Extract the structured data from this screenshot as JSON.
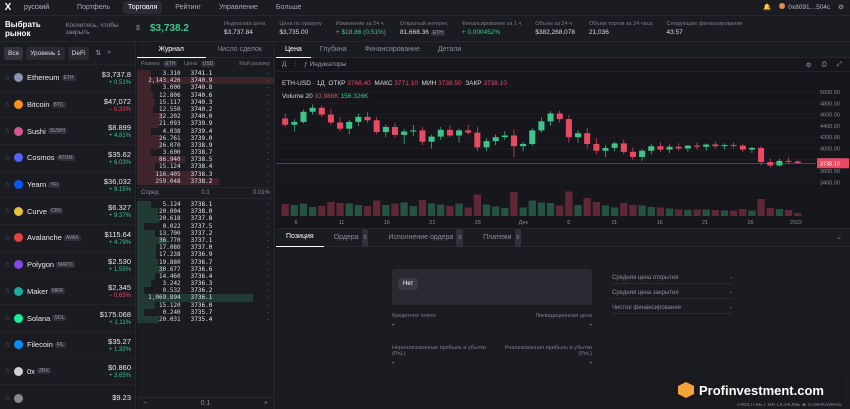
{
  "nav": {
    "logo": "X",
    "language": "русский",
    "items": [
      "Портфель",
      "Торговля",
      "Рейтинг",
      "Управление",
      "Больше"
    ],
    "active_index": 1,
    "account": "0x8091…504c"
  },
  "market": {
    "selector_label": "Выбрать рынок",
    "selector_hint": "Коснитесь, чтобы закрыть",
    "symbol": "$",
    "price": "$3,738.2",
    "stats": [
      {
        "label": "Индексная цена",
        "value": "$3,737.84",
        "green": false
      },
      {
        "label": "Цена по оракулу",
        "value": "$3,735.00",
        "green": false
      },
      {
        "label": "Изменение за 24 ч",
        "value": "+ $18.86 (0.51%)",
        "green": true
      },
      {
        "label": "Открытый интерес",
        "value": "81,668.36",
        "tag": "ETH",
        "green": false
      },
      {
        "label": "Финансирование за 1 ч",
        "value": "+ 0.000452%",
        "green": true
      },
      {
        "label": "Объем за 24 ч",
        "value": "$382,268,078",
        "green": false
      },
      {
        "label": "Объем торгов за 24 часа",
        "value": "21,036",
        "green": false
      },
      {
        "label": "Следующее финансирование",
        "value": "43:57",
        "green": false
      }
    ]
  },
  "filters": {
    "all": "Все",
    "level": "Уровень 1",
    "defi": "DeFi"
  },
  "markets": [
    {
      "name": "Ethereum",
      "ticker": "ETH",
      "price": "$3,737.8",
      "change": "+ 0.51%",
      "up": true,
      "color": "#8a92b2"
    },
    {
      "name": "Bitcoin",
      "ticker": "BTC",
      "price": "$47,072",
      "change": "− 0.33%",
      "up": false,
      "color": "#f7931a"
    },
    {
      "name": "Sushi",
      "ticker": "SUSHI",
      "price": "$8.899",
      "change": "+ 4.81%",
      "up": true,
      "color": "#d65892"
    },
    {
      "name": "Cosmos",
      "ticker": "ATOM",
      "price": "$35.62",
      "change": "+ 6.03%",
      "up": true,
      "color": "#5064fb"
    },
    {
      "name": "Yearn",
      "ticker": "YFI",
      "price": "$36,032",
      "change": "+ 9.15%",
      "up": true,
      "color": "#0657f9"
    },
    {
      "name": "Curve",
      "ticker": "CRV",
      "price": "$6.327",
      "change": "+ 9.37%",
      "up": true,
      "color": "#e8c13a"
    },
    {
      "name": "Avalanche",
      "ticker": "AVAX",
      "price": "$115.64",
      "change": "+ 4.79%",
      "up": true,
      "color": "#e84142"
    },
    {
      "name": "Polygon",
      "ticker": "MATIC",
      "price": "$2.530",
      "change": "+ 1.55%",
      "up": true,
      "color": "#8247e5"
    },
    {
      "name": "Maker",
      "ticker": "MKR",
      "price": "$2,345",
      "change": "− 0.65%",
      "up": false,
      "color": "#1aab9b"
    },
    {
      "name": "Solana",
      "ticker": "SOL",
      "price": "$175.068",
      "change": "+ 1.11%",
      "up": true,
      "color": "#14f195"
    },
    {
      "name": "Filecoin",
      "ticker": "FIL",
      "price": "$35.27",
      "change": "+ 1.32%",
      "up": true,
      "color": "#0090ff"
    },
    {
      "name": "0x",
      "ticker": "ZRX",
      "price": "$0.860",
      "change": "+ 3.65%",
      "up": true,
      "color": "#cfcfd4"
    },
    {
      "name": "",
      "ticker": "",
      "price": "$9.23",
      "change": "",
      "up": true,
      "color": "#888"
    }
  ],
  "book": {
    "tabs": [
      "Журнал",
      "Число сделок"
    ],
    "headers": [
      "Размер",
      "ETH",
      "Цена",
      "USD",
      "Мой размер"
    ],
    "asks": [
      {
        "size": "3.310",
        "price": "3741.1",
        "mine": "-",
        "depth": 0.1
      },
      {
        "size": "2,143.426",
        "price": "3740.9",
        "mine": "-",
        "depth": 1.0
      },
      {
        "size": "3.000",
        "price": "3740.8",
        "mine": "-",
        "depth": 0.1
      },
      {
        "size": "12.806",
        "price": "3740.6",
        "mine": "-",
        "depth": 0.12
      },
      {
        "size": "15.117",
        "price": "3740.3",
        "mine": "-",
        "depth": 0.13
      },
      {
        "size": "12.550",
        "price": "3740.2",
        "mine": "-",
        "depth": 0.12
      },
      {
        "size": "32.202",
        "price": "3740.0",
        "mine": "-",
        "depth": 0.2
      },
      {
        "size": "21.093",
        "price": "3739.9",
        "mine": "-",
        "depth": 0.16
      },
      {
        "size": "4.038",
        "price": "3739.4",
        "mine": "-",
        "depth": 0.1
      },
      {
        "size": "26.761",
        "price": "3739.0",
        "mine": "-",
        "depth": 0.18
      },
      {
        "size": "26.070",
        "price": "3738.9",
        "mine": "-",
        "depth": 0.18
      },
      {
        "size": "3.600",
        "price": "3738.7",
        "mine": "-",
        "depth": 0.1
      },
      {
        "size": "86.940",
        "price": "3738.5",
        "mine": "-",
        "depth": 0.35
      },
      {
        "size": "15.124",
        "price": "3738.4",
        "mine": "-",
        "depth": 0.13
      },
      {
        "size": "116.405",
        "price": "3738.3",
        "mine": "-",
        "depth": 0.42
      },
      {
        "size": "259.048",
        "price": "3738.2",
        "mine": "-",
        "depth": 0.6
      }
    ],
    "spread": {
      "label": "Спред",
      "value": "0.1",
      "pct": "0.01%"
    },
    "bids": [
      {
        "size": "5.124",
        "price": "3738.1",
        "mine": "-",
        "depth": 0.1
      },
      {
        "size": "20.004",
        "price": "3738.0",
        "mine": "-",
        "depth": 0.15
      },
      {
        "size": "20.618",
        "price": "3737.8",
        "mine": "-",
        "depth": 0.16
      },
      {
        "size": "0.022",
        "price": "3737.5",
        "mine": "-",
        "depth": 0.05
      },
      {
        "size": "13.700",
        "price": "3737.2",
        "mine": "-",
        "depth": 0.13
      },
      {
        "size": "36.770",
        "price": "3737.1",
        "mine": "-",
        "depth": 0.22
      },
      {
        "size": "17.080",
        "price": "3737.0",
        "mine": "-",
        "depth": 0.14
      },
      {
        "size": "17.238",
        "price": "3736.9",
        "mine": "-",
        "depth": 0.14
      },
      {
        "size": "19.880",
        "price": "3736.7",
        "mine": "-",
        "depth": 0.15
      },
      {
        "size": "30.677",
        "price": "3736.6",
        "mine": "-",
        "depth": 0.2
      },
      {
        "size": "14.460",
        "price": "3736.4",
        "mine": "-",
        "depth": 0.13
      },
      {
        "size": "3.242",
        "price": "3736.3",
        "mine": "-",
        "depth": 0.1
      },
      {
        "size": "0.532",
        "price": "3736.2",
        "mine": "-",
        "depth": 0.05
      },
      {
        "size": "1,069.894",
        "price": "3736.1",
        "mine": "-",
        "depth": 0.85
      },
      {
        "size": "15.120",
        "price": "3736.0",
        "mine": "-",
        "depth": 0.13
      },
      {
        "size": "0.240",
        "price": "3735.7",
        "mine": "-",
        "depth": 0.05
      },
      {
        "size": "20.031",
        "price": "3735.4",
        "mine": "-",
        "depth": 0.16
      }
    ],
    "foot_step": "0.1"
  },
  "chart": {
    "tabs": [
      "Цена",
      "Глубина",
      "Финансирование",
      "Детали"
    ],
    "toolbar_tf": "Д",
    "toolbar_ind": "Индикаторы",
    "pair": "ETH-USD",
    "tf": "1Д",
    "ohlc": {
      "open_label": "ОТКР",
      "open": "3768.40",
      "high_label": "МАКС",
      "high": "3771.10",
      "low_label": "МИН",
      "low": "3738.50",
      "close_label": "ЗАКР",
      "close": "3738.10"
    },
    "volume_label": "Volume 20",
    "volume_a": "33.988K",
    "volume_b": "156.326K",
    "last_price": "3738.10",
    "price_axis": [
      "5000.00",
      "4800.00",
      "4600.00",
      "4400.00",
      "4200.00",
      "4000.00",
      "3800.00",
      "3600.00",
      "3400.00"
    ],
    "date_axis": [
      "6",
      "11",
      "16",
      "21",
      "26",
      "Дек",
      "6",
      "11",
      "16",
      "21",
      "26",
      "2022"
    ]
  },
  "chart_data": {
    "type": "candlestick",
    "ylim": [
      3300,
      5000
    ],
    "candles": [
      [
        4530,
        4620,
        4380,
        4420
      ],
      [
        4420,
        4520,
        4300,
        4470
      ],
      [
        4470,
        4690,
        4440,
        4650
      ],
      [
        4650,
        4780,
        4600,
        4720
      ],
      [
        4720,
        4760,
        4560,
        4600
      ],
      [
        4600,
        4700,
        4420,
        4460
      ],
      [
        4460,
        4560,
        4300,
        4350
      ],
      [
        4350,
        4500,
        4250,
        4470
      ],
      [
        4470,
        4620,
        4400,
        4560
      ],
      [
        4560,
        4650,
        4450,
        4500
      ],
      [
        4500,
        4560,
        4250,
        4290
      ],
      [
        4290,
        4420,
        4200,
        4380
      ],
      [
        4380,
        4450,
        4200,
        4240
      ],
      [
        4240,
        4350,
        4080,
        4300
      ],
      [
        4300,
        4420,
        4220,
        4320
      ],
      [
        4320,
        4380,
        4060,
        4120
      ],
      [
        4120,
        4250,
        4000,
        4210
      ],
      [
        4210,
        4380,
        4150,
        4330
      ],
      [
        4330,
        4400,
        4200,
        4230
      ],
      [
        4230,
        4350,
        4100,
        4320
      ],
      [
        4320,
        4420,
        4250,
        4280
      ],
      [
        4280,
        4380,
        3950,
        4020
      ],
      [
        4020,
        4180,
        3950,
        4130
      ],
      [
        4130,
        4250,
        4060,
        4200
      ],
      [
        4200,
        4310,
        4150,
        4230
      ],
      [
        4230,
        4330,
        3850,
        4040
      ],
      [
        4040,
        4120,
        3950,
        4080
      ],
      [
        4080,
        4360,
        4050,
        4320
      ],
      [
        4320,
        4550,
        4280,
        4480
      ],
      [
        4480,
        4660,
        4400,
        4620
      ],
      [
        4620,
        4670,
        4460,
        4520
      ],
      [
        4520,
        4590,
        4100,
        4200
      ],
      [
        4200,
        4320,
        4100,
        4270
      ],
      [
        4270,
        4360,
        4000,
        4080
      ],
      [
        4080,
        4180,
        3900,
        3960
      ],
      [
        3960,
        4060,
        3850,
        4010
      ],
      [
        4010,
        4120,
        3950,
        4090
      ],
      [
        4090,
        4160,
        3900,
        3940
      ],
      [
        3940,
        4020,
        3800,
        3850
      ],
      [
        3850,
        3990,
        3780,
        3960
      ],
      [
        3960,
        4080,
        3900,
        4040
      ],
      [
        4040,
        4110,
        3940,
        3980
      ],
      [
        3980,
        4070,
        3920,
        4030
      ],
      [
        4030,
        4090,
        3960,
        4000
      ],
      [
        4000,
        4060,
        3940,
        4050
      ],
      [
        4050,
        4110,
        3980,
        4030
      ],
      [
        4030,
        4090,
        3960,
        4070
      ],
      [
        4070,
        4120,
        4000,
        4040
      ],
      [
        4040,
        4090,
        3980,
        4060
      ],
      [
        4060,
        4110,
        4000,
        4050
      ],
      [
        4050,
        4080,
        3940,
        3980
      ],
      [
        3980,
        4030,
        3920,
        4010
      ],
      [
        4010,
        4040,
        3700,
        3760
      ],
      [
        3760,
        3820,
        3660,
        3700
      ],
      [
        3700,
        3820,
        3680,
        3780
      ],
      [
        3780,
        3840,
        3720,
        3770
      ],
      [
        3770,
        3790,
        3730,
        3738
      ]
    ]
  },
  "positions": {
    "tabs": [
      {
        "label": "Позиция",
        "count": ""
      },
      {
        "label": "Ордера",
        "count": "0"
      },
      {
        "label": "Исполнение ордера",
        "count": "0"
      },
      {
        "label": "Платежи",
        "count": "0"
      }
    ],
    "pill": "Нет",
    "left_stats": [
      {
        "l1": "Кредитное плечо",
        "v1": "-",
        "l2": "Ликвидационная цена",
        "v2": "-"
      },
      {
        "l1": "Нереализованная прибыль и убытки (PnL)",
        "v1": "-",
        "l2": "Реализованная прибыль и убытки (PnL)",
        "v2": "-"
      }
    ],
    "right_stats": [
      {
        "label": "Средняя цена открытия",
        "value": "-"
      },
      {
        "label": "Средняя цена закрытия",
        "value": "-"
      },
      {
        "label": "Чистое финансирование",
        "value": "-"
      }
    ],
    "powered": "РАБОТАЕТ НА ОСНОВЕ",
    "powered_brand": "STARKWARE"
  },
  "brand": {
    "text": "Profinvestment.com"
  }
}
